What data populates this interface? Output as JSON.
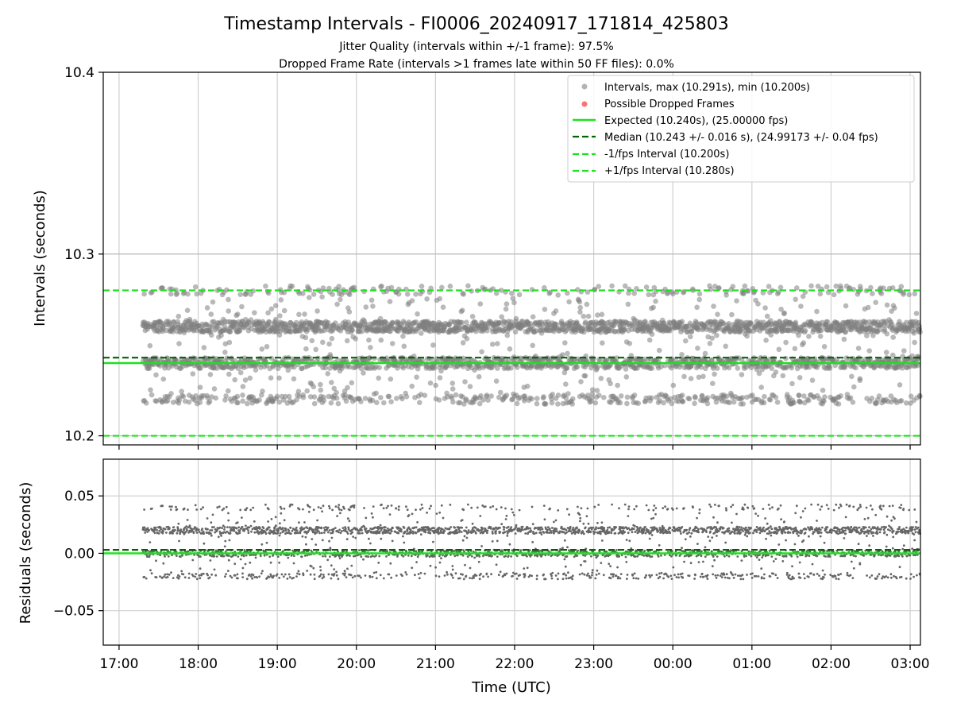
{
  "chart_data": [
    {
      "type": "scatter",
      "title": "Timestamp Intervals - FI0006_20240917_171814_425803",
      "subtitle_lines": [
        "Jitter Quality (intervals within +/-1 frame): 97.5%",
        "Dropped Frame Rate (intervals >1 frames late within 50 FF files): 0.0%"
      ],
      "ylabel": "Intervals (seconds)",
      "ylim": [
        10.195,
        10.4
      ],
      "yticks": [
        10.2,
        10.3,
        10.4
      ],
      "ytick_labels": [
        "10.2",
        "10.3",
        "10.4"
      ],
      "grid": true,
      "legend_position": "top-right",
      "x_range_hours": [
        16.8,
        27.13
      ],
      "xticks_hours": [
        17,
        18,
        19,
        20,
        21,
        22,
        23,
        24,
        25,
        26,
        27
      ],
      "data_start_hour": 17.3,
      "data_end_hour": 27.13,
      "interval_levels_seconds": [
        10.22,
        10.24,
        10.26,
        10.28
      ],
      "reference_lines": {
        "expected": 10.24,
        "median": 10.243,
        "minus_1_fps": 10.2,
        "plus_1_fps": 10.28
      },
      "series": [
        {
          "label": "Intervals, max (10.291s), min (10.200s)",
          "color": "#808080",
          "style": "dot"
        },
        {
          "label": "Possible Dropped Frames",
          "color": "#ff4d4d",
          "style": "dot"
        },
        {
          "label": "Expected (10.240s), (25.00000 fps)",
          "color": "#1ee01e",
          "style": "solid"
        },
        {
          "label": "Median (10.243 +/- 0.016 s), (24.99173 +/- 0.04 fps)",
          "color": "#006400",
          "style": "dash"
        },
        {
          "label": "-1/fps Interval (10.200s)",
          "color": "#1ee01e",
          "style": "dash"
        },
        {
          "label": "+1/fps Interval (10.280s)",
          "color": "#1ee01e",
          "style": "dash"
        }
      ]
    },
    {
      "type": "scatter",
      "xlabel": "Time (UTC)",
      "ylabel": "Residuals (seconds)",
      "ylim": [
        -0.08,
        0.082
      ],
      "yticks": [
        -0.05,
        0.0,
        0.05
      ],
      "ytick_labels": [
        "−0.05",
        "0.00",
        "0.05"
      ],
      "xtick_labels": [
        "17:00",
        "18:00",
        "19:00",
        "20:00",
        "21:00",
        "22:00",
        "23:00",
        "00:00",
        "01:00",
        "02:00",
        "03:00"
      ],
      "grid": true,
      "residual_levels_seconds": [
        -0.02,
        0.0,
        0.02,
        0.04
      ],
      "reference_lines": {
        "zero": 0.0,
        "median_offset": 0.003
      }
    }
  ]
}
